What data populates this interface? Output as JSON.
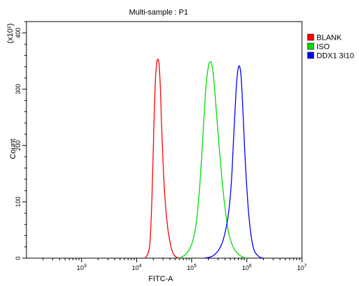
{
  "chart_data": {
    "type": "line",
    "title": "Multi-sample : P1",
    "xlabel": "FITC-A",
    "ylabel": "Count",
    "y_multiplier_label": "(x10¹)",
    "x_scale": "log",
    "xlim": [
      100,
      10000000
    ],
    "ylim": [
      0,
      420
    ],
    "x_ticks": [
      {
        "value": 1000,
        "base": "10",
        "exp": "3"
      },
      {
        "value": 10000,
        "base": "10",
        "exp": "4"
      },
      {
        "value": 100000,
        "base": "10",
        "exp": "5"
      },
      {
        "value": 1000000,
        "base": "10",
        "exp": "6"
      },
      {
        "value": 10000000,
        "base": "10",
        "exp": "7"
      }
    ],
    "y_ticks": [
      0,
      100,
      200,
      300,
      400
    ],
    "y_tick_labels": [
      "0",
      "100",
      "200",
      "300",
      "400"
    ],
    "grid": false,
    "legend_position": "top-right",
    "series": [
      {
        "name": "BLANK",
        "color": "#ff0000",
        "x": [
          14000,
          16000,
          17500,
          19000,
          20500,
          22000,
          23500,
          24500,
          25500,
          27000,
          29000,
          32000,
          36000,
          41000,
          46000,
          52000,
          60000
        ],
        "y": [
          0,
          8,
          30,
          110,
          230,
          320,
          350,
          352,
          345,
          300,
          210,
          120,
          60,
          25,
          8,
          2,
          0
        ]
      },
      {
        "name": "ISO",
        "color": "#00dd00",
        "x": [
          60000,
          80000,
          100000,
          120000,
          140000,
          160000,
          180000,
          200000,
          215000,
          230000,
          250000,
          280000,
          320000,
          370000,
          420000,
          480000,
          600000,
          800000,
          1000000
        ],
        "y": [
          0,
          8,
          25,
          60,
          130,
          220,
          300,
          340,
          348,
          345,
          320,
          260,
          190,
          120,
          75,
          40,
          15,
          3,
          0
        ]
      },
      {
        "name": "DDX1 3I10",
        "color": "#0000ff",
        "x": [
          170000,
          250000,
          350000,
          450000,
          520000,
          580000,
          640000,
          690000,
          740000,
          790000,
          850000,
          950000,
          1100000,
          1300000,
          1600000,
          2000000
        ],
        "y": [
          0,
          5,
          25,
          70,
          130,
          220,
          300,
          335,
          340,
          320,
          260,
          160,
          70,
          20,
          4,
          0
        ]
      }
    ]
  }
}
